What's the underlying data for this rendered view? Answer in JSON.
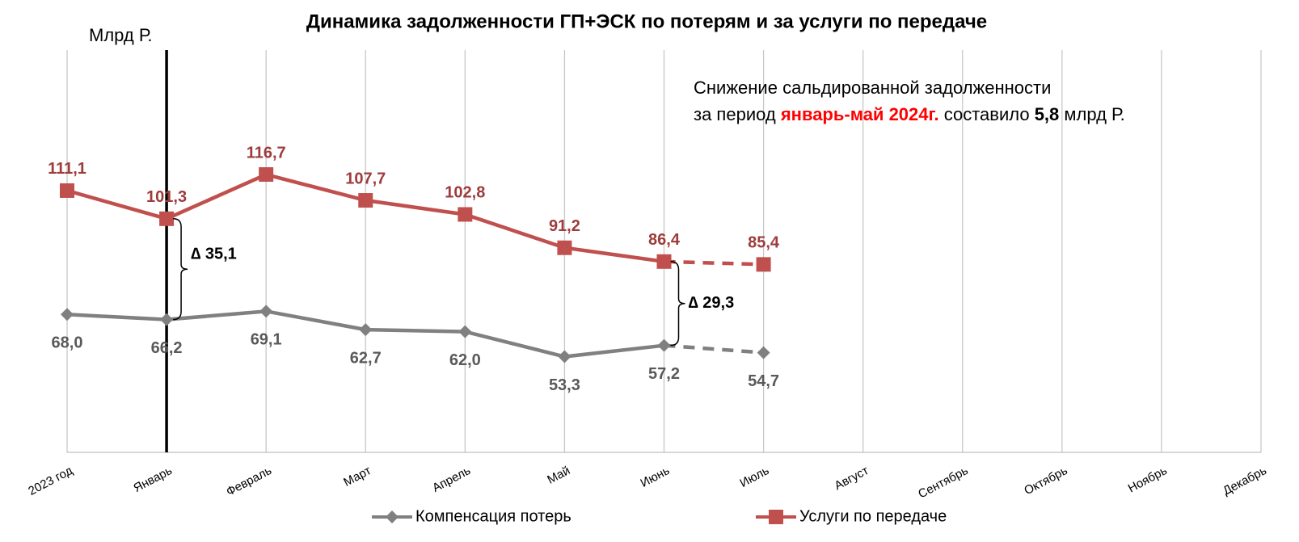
{
  "chart_data": {
    "type": "line",
    "title": "Динамика задолженности ГП+ЭСК по потерям и за услуги по передаче",
    "y_axis_label": "Млрд Р.",
    "categories": [
      "2023 год",
      "Январь",
      "Февраль",
      "Март",
      "Апрель",
      "Май",
      "Июнь",
      "Июль",
      "Август",
      "Сентябрь",
      "Октябрь",
      "Ноябрь",
      "Декабрь"
    ],
    "series": [
      {
        "name": "Компенсация потерь",
        "color": "#808080",
        "label_color": "#595959",
        "marker": "diamond",
        "values": [
          68.0,
          66.2,
          69.1,
          62.7,
          62.0,
          53.3,
          57.2,
          54.7,
          null,
          null,
          null,
          null,
          null
        ],
        "value_labels": [
          "68,0",
          "66,2",
          "69,1",
          "62,7",
          "62,0",
          "53,3",
          "57,2",
          "54,7",
          null,
          null,
          null,
          null,
          null
        ]
      },
      {
        "name": "Услуги по передаче",
        "color": "#c0504d",
        "label_color": "#9e3b3b",
        "marker": "square",
        "values": [
          111.1,
          101.3,
          116.7,
          107.7,
          102.8,
          91.2,
          86.4,
          85.4,
          null,
          null,
          null,
          null,
          null
        ],
        "value_labels": [
          "111,1",
          "101,3",
          "116,7",
          "107,7",
          "102,8",
          "91,2",
          "86,4",
          "85,4",
          null,
          null,
          null,
          null,
          null
        ]
      }
    ],
    "dashed_from_index": 6,
    "highlight_index": 1,
    "ylim": [
      20,
      160
    ],
    "grid": true,
    "legend": "bottom",
    "deltas": [
      {
        "index": 1,
        "label": "∆ 35,1"
      },
      {
        "index": 6,
        "label": "∆ 29,3"
      }
    ],
    "note": {
      "line1": "Снижение сальдированной задолженности",
      "prefix": "за период",
      "period": "январь-май 2024г.",
      "middle": "составило",
      "amount": "5,8",
      "suffix": "млрд Р."
    }
  }
}
